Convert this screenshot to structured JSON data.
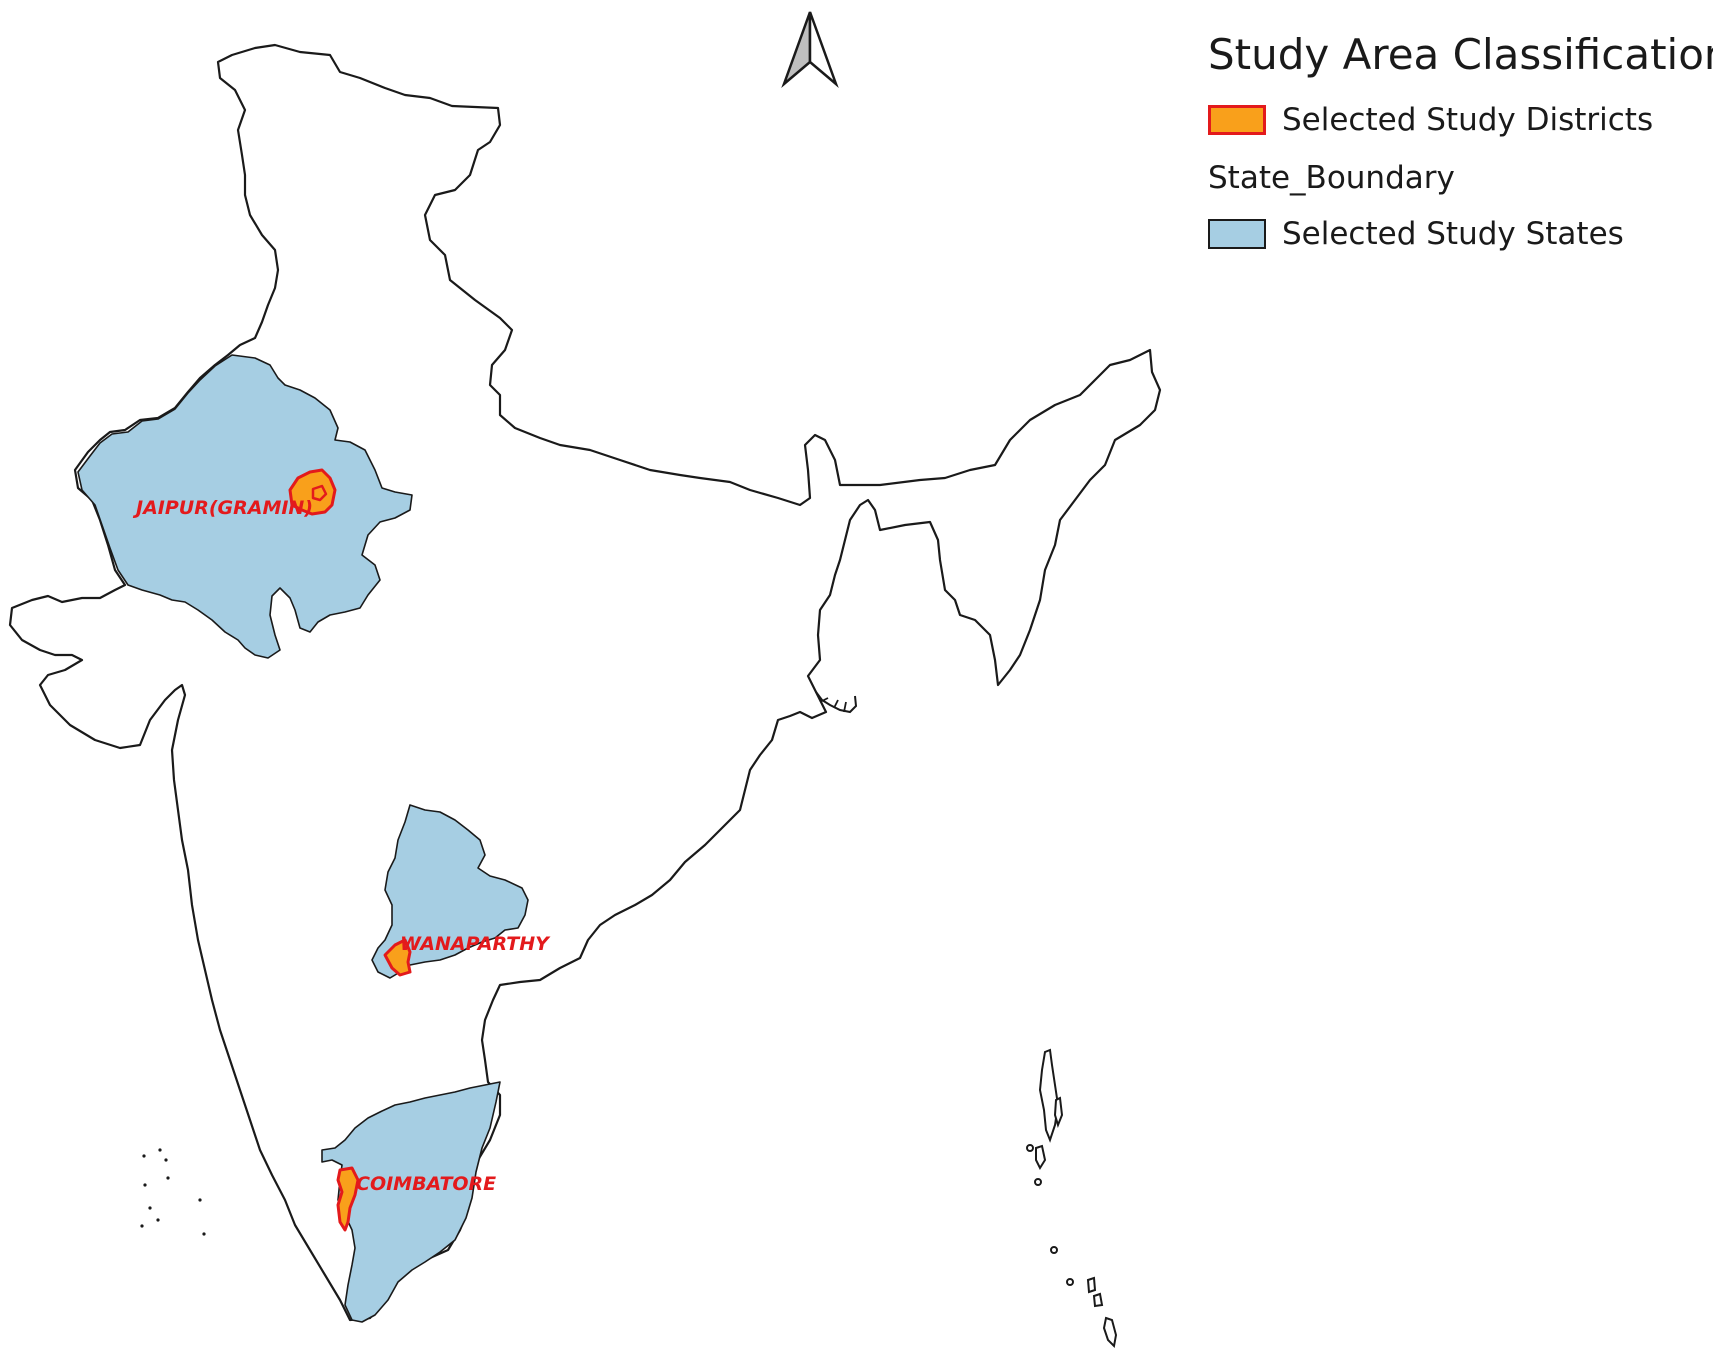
{
  "legend": {
    "title": "Study Area Classification",
    "items": [
      {
        "label": "Selected Study Districts",
        "fill": "#f9a01b",
        "stroke": "#e31a1c"
      }
    ],
    "group_header": "State_Boundary",
    "group_items": [
      {
        "label": "Selected Study States",
        "fill": "#a6cee3",
        "stroke": "#1a1a1a"
      }
    ]
  },
  "districts": {
    "jaipur": {
      "label": "JAIPUR(GRAMIN)"
    },
    "wanaparthy": {
      "label": "WANAPARTHY"
    },
    "coimbatore": {
      "label": "COIMBATORE"
    }
  },
  "colors": {
    "state_fill": "#a6cee3",
    "district_fill": "#f9a01b",
    "district_stroke": "#e31a1c",
    "label_color": "#e31a1c",
    "outline": "#1a1a1a",
    "background": "#ffffff"
  },
  "north_arrow": {
    "icon": "north-arrow-icon"
  }
}
